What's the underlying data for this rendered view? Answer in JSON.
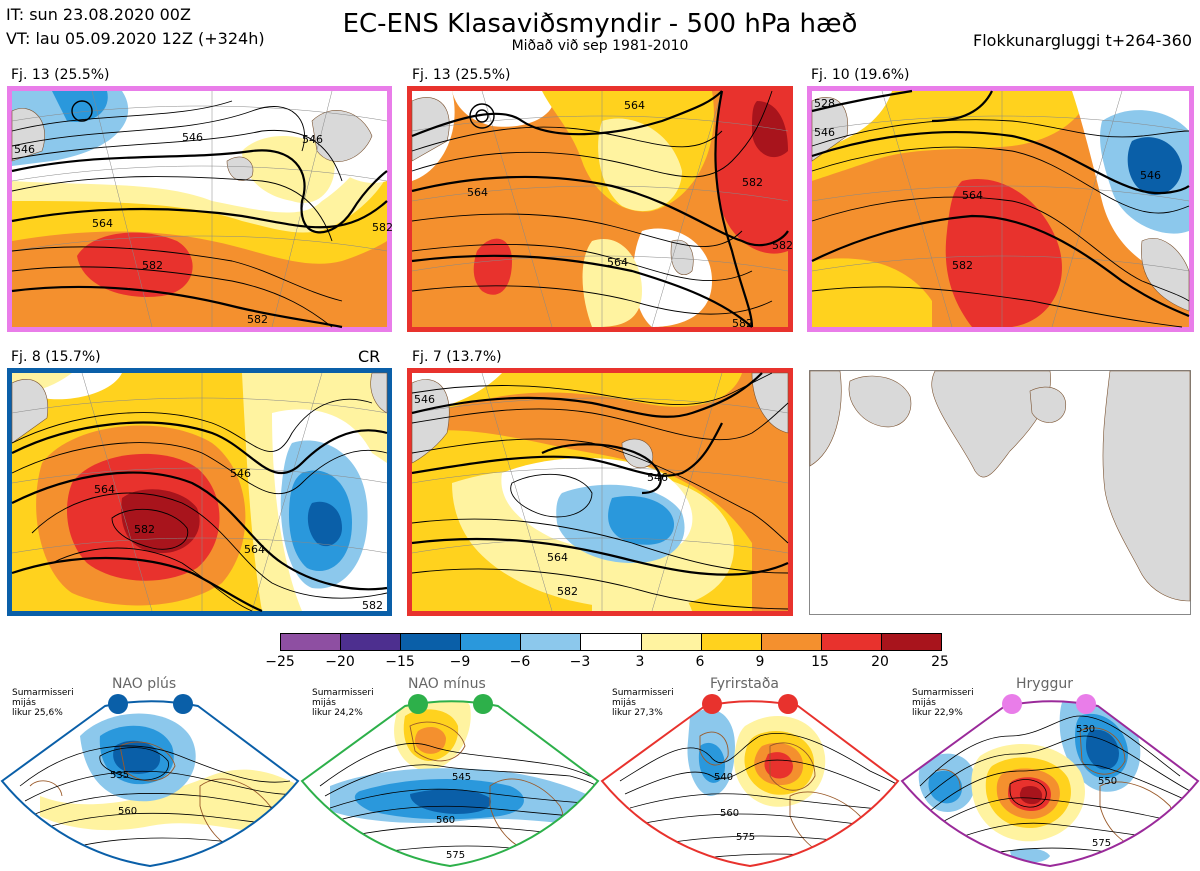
{
  "header": {
    "it": "IT: sun 23.08.2020 00Z",
    "vt": "VT: lau 05.09.2020 12Z  (+324h)",
    "title": "EC-ENS Klasaviðsmyndir - 500 hPa hæð",
    "subtitle": "Miðað við sep 1981-2010",
    "right": "Flokkunargluggi t+264-360"
  },
  "panels": [
    {
      "label": "Fj. 13 (25.5%)",
      "frame_color": "#e97de9",
      "contours": [
        "546",
        "546",
        "546",
        "564",
        "582",
        "582",
        "582"
      ]
    },
    {
      "label": "Fj. 13 (25.5%)",
      "frame_color": "#e8322d",
      "contours": [
        "564",
        "564",
        "564",
        "582",
        "582",
        "582"
      ]
    },
    {
      "label": "Fj. 10 (19.6%)",
      "frame_color": "#e97de9",
      "contours": [
        "528",
        "546",
        "546",
        "564",
        "582"
      ]
    },
    {
      "label": "Fj. 8 (15.7%)",
      "frame_color": "#0a5fa8",
      "contours": [
        "546",
        "564",
        "564",
        "582",
        "582"
      ],
      "tag": "CR"
    },
    {
      "label": "Fj. 7 (13.7%)",
      "frame_color": "#e8322d",
      "contours": [
        "546",
        "546",
        "564",
        "582"
      ]
    }
  ],
  "colorbar": {
    "colors": [
      "#8e4fa2",
      "#4d2f8f",
      "#0a5fa8",
      "#2a98dc",
      "#8cc8ec",
      "#ffffff",
      "#fff3a0",
      "#ffd21e",
      "#f4902e",
      "#e8322d",
      "#a8141c"
    ],
    "ticks": [
      "−25",
      "−20",
      "−15",
      "−9",
      "−6",
      "−3",
      "3",
      "6",
      "9",
      "15",
      "20",
      "25"
    ]
  },
  "regimes": [
    {
      "title": "NAO plús",
      "info": [
        "Sumarmisseri",
        "mijás",
        "likur 25,6%"
      ],
      "color": "#0a5fa8",
      "contours": [
        "535",
        "560"
      ]
    },
    {
      "title": "NAO mínus",
      "info": [
        "Sumarmisseri",
        "mijás",
        "likur 24,2%"
      ],
      "color": "#2db04a",
      "contours": [
        "545",
        "560",
        "575"
      ]
    },
    {
      "title": "Fyrirstaða",
      "info": [
        "Sumarmisseri",
        "mijás",
        "likur 27,3%"
      ],
      "color": "#e8322d",
      "contours": [
        "540",
        "560",
        "575"
      ]
    },
    {
      "title": "Hryggur",
      "info": [
        "Sumarmisseri",
        "mijás",
        "likur 22,9%"
      ],
      "color": "#9a2a9a",
      "dot_color": "#e97de9",
      "contours": [
        "530",
        "550",
        "575"
      ]
    }
  ]
}
